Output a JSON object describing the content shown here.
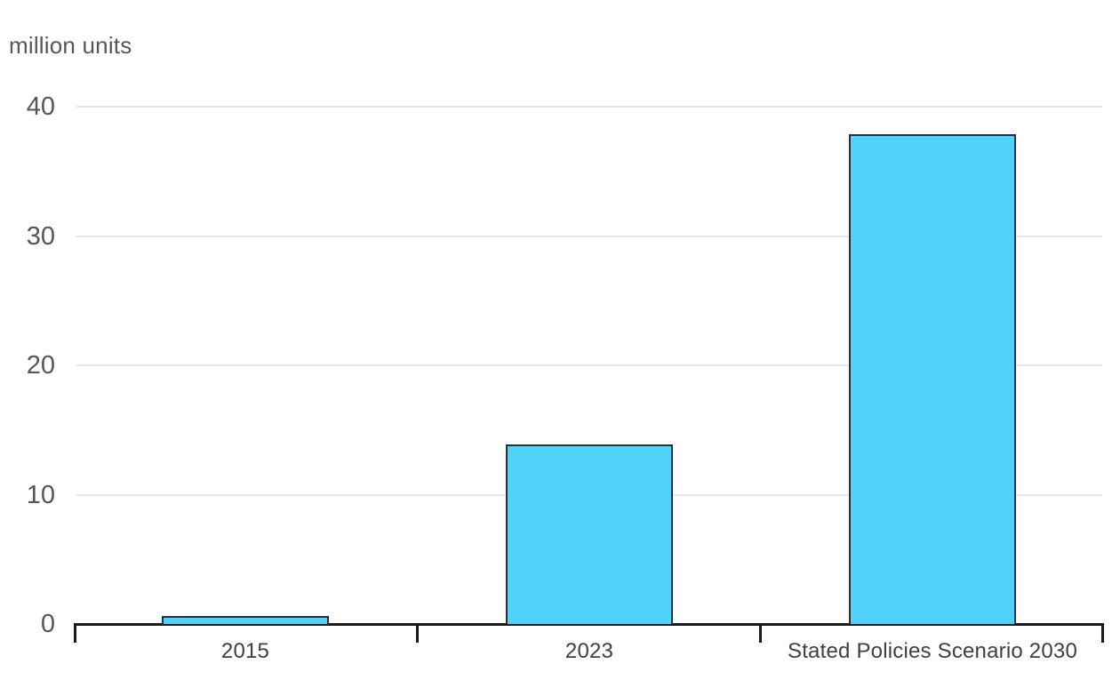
{
  "chart": {
    "colors": {
      "background": "#FFFFFF",
      "bar_fill": "#4FD3FA",
      "bar_border": "#2B2E34",
      "axis": "#1B1B1D",
      "gridline": "#E9E9E9",
      "tick_text": "#54565C",
      "category_text": "#3D3F44",
      "unit_text": "#55575C"
    }
  },
  "chart_data": {
    "type": "bar",
    "title": "",
    "xlabel": "",
    "ylabel": "million units",
    "categories": [
      "2015",
      "2023",
      "Stated Policies Scenario 2030"
    ],
    "values": [
      0.6,
      13.9,
      37.9
    ],
    "y_ticks": [
      0,
      10,
      20,
      30,
      40
    ],
    "ylim": [
      0,
      40
    ],
    "grid": "horizontal gridlines at each y tick",
    "legend_position": "none",
    "series_name": "million units"
  }
}
